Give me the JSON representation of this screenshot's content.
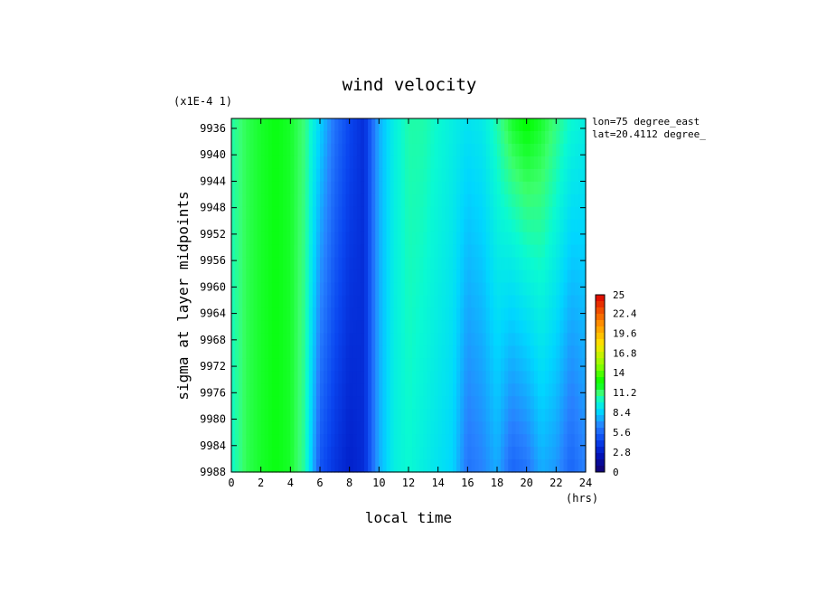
{
  "chart_data": {
    "type": "heatmap",
    "title": "wind velocity",
    "xlabel": "local time",
    "x_unit": "(hrs)",
    "ylabel": "sigma at layer midpoints",
    "y_multiplier": "(x1E-4 1)",
    "xlim": [
      0,
      24
    ],
    "ylim": [
      9934.5,
      9988
    ],
    "x_ticks": [
      "0",
      "2",
      "4",
      "6",
      "8",
      "10",
      "12",
      "14",
      "16",
      "18",
      "20",
      "22",
      "24"
    ],
    "y_ticks": [
      "9936",
      "9940",
      "9944",
      "9948",
      "9952",
      "9956",
      "9960",
      "9964",
      "9968",
      "9972",
      "9976",
      "9980",
      "9984",
      "9988"
    ],
    "info": [
      "lon=75 degree_east",
      "lat=20.4112 degree_"
    ],
    "colorbar": {
      "min": 0,
      "max": 25,
      "labels": [
        "25",
        "22.4",
        "19.6",
        "16.8",
        "14",
        "11.2",
        "8.4",
        "5.6",
        "2.8",
        "0"
      ]
    },
    "x": [
      0,
      1,
      2,
      3,
      4,
      5,
      6,
      7,
      8,
      9,
      10,
      11,
      12,
      13,
      14,
      15,
      16,
      17,
      18,
      19,
      20,
      21,
      22,
      23,
      24
    ],
    "y": [
      9935,
      9988
    ],
    "values_top": [
      10.5,
      11.5,
      12,
      12.3,
      12,
      11,
      8.5,
      6,
      4.5,
      3.5,
      7.5,
      9.5,
      10.5,
      10.5,
      10,
      9.5,
      9,
      9.3,
      10.5,
      12,
      12.6,
      12,
      11,
      10,
      9.5
    ],
    "values_bottom": [
      10,
      11.5,
      12,
      12.3,
      12,
      10.5,
      5,
      3.8,
      3,
      3.5,
      7.5,
      9.5,
      10,
      9.5,
      9,
      8.5,
      6,
      6.5,
      7.5,
      5.5,
      6,
      7.5,
      7,
      5.5,
      6.5
    ]
  }
}
